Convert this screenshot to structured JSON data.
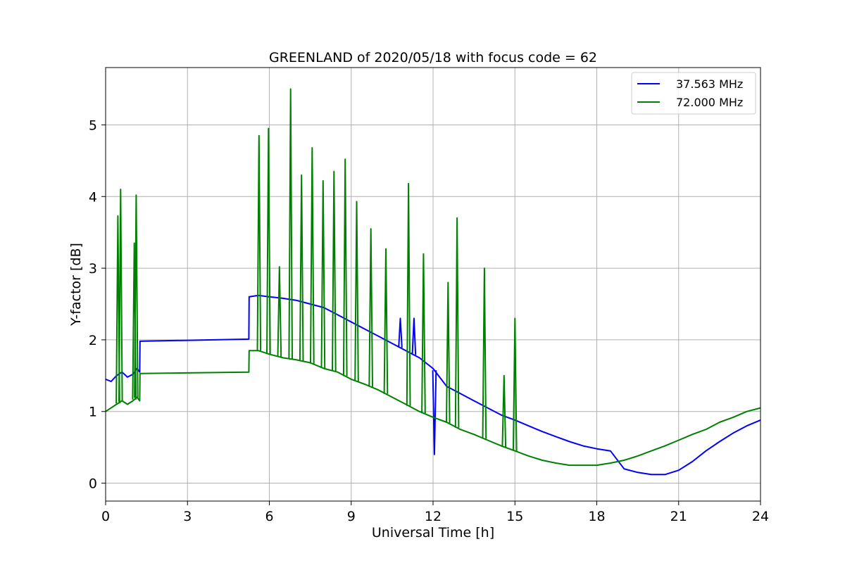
{
  "chart_data": {
    "type": "line",
    "title": "GREENLAND of 2020/05/18 with focus code = 62",
    "xlabel": "Universal Time [h]",
    "ylabel": "Y-factor [dB]",
    "xlim": [
      0,
      24
    ],
    "ylim": [
      -0.25,
      5.8
    ],
    "xticks": [
      0,
      3,
      6,
      9,
      12,
      15,
      18,
      21,
      24
    ],
    "yticks": [
      0,
      1,
      2,
      3,
      4,
      5
    ],
    "grid": true,
    "legend_position": "top-right",
    "series": [
      {
        "name": "37.563 MHz",
        "color": "#0000ff",
        "x": [
          0,
          0.2,
          0.4,
          0.6,
          0.8,
          1.0,
          1.15,
          1.25,
          1.26,
          5.25,
          5.26,
          5.6,
          6.0,
          6.5,
          7.0,
          7.5,
          8.0,
          8.5,
          9.0,
          9.5,
          10.0,
          10.5,
          11.0,
          11.5,
          12.0,
          12.5,
          13.0,
          13.5,
          14.0,
          14.5,
          15.0,
          15.5,
          16.0,
          16.5,
          17.0,
          17.5,
          18.0,
          18.5,
          19.0,
          19.5,
          20.0,
          20.5,
          21.0,
          21.5,
          22.0,
          22.5,
          23.0,
          23.5,
          24.0
        ],
        "y": [
          1.45,
          1.42,
          1.5,
          1.55,
          1.48,
          1.52,
          1.6,
          1.55,
          1.98,
          2.01,
          2.6,
          2.62,
          2.6,
          2.58,
          2.55,
          2.5,
          2.45,
          2.35,
          2.25,
          2.15,
          2.05,
          1.95,
          1.85,
          1.75,
          1.6,
          1.35,
          1.25,
          1.15,
          1.05,
          0.95,
          0.88,
          0.8,
          0.72,
          0.65,
          0.58,
          0.52,
          0.48,
          0.45,
          0.2,
          0.15,
          0.12,
          0.12,
          0.18,
          0.3,
          0.45,
          0.58,
          0.7,
          0.8,
          0.88
        ],
        "spikes": [
          {
            "x": 12.05,
            "y": 0.4
          },
          {
            "x": 11.3,
            "y": 2.3
          },
          {
            "x": 10.8,
            "y": 2.3
          }
        ]
      },
      {
        "name": "72.000 MHz",
        "color": "#008000",
        "x": [
          0,
          0.2,
          0.4,
          0.6,
          0.8,
          1.0,
          1.15,
          1.25,
          1.26,
          5.25,
          5.26,
          5.6,
          6.0,
          6.5,
          7.0,
          7.5,
          8.0,
          8.5,
          9.0,
          9.5,
          10.0,
          10.5,
          11.0,
          11.5,
          12.0,
          12.5,
          13.0,
          13.5,
          14.0,
          14.5,
          15.0,
          15.5,
          16.0,
          16.5,
          17.0,
          17.5,
          18.0,
          18.5,
          19.0,
          19.5,
          20.0,
          20.5,
          21.0,
          21.5,
          22.0,
          22.5,
          23.0,
          23.5,
          24.0
        ],
        "y": [
          1.0,
          1.05,
          1.1,
          1.15,
          1.1,
          1.15,
          1.2,
          1.15,
          1.53,
          1.55,
          1.85,
          1.85,
          1.8,
          1.75,
          1.72,
          1.68,
          1.6,
          1.55,
          1.45,
          1.38,
          1.3,
          1.2,
          1.1,
          1.0,
          0.92,
          0.85,
          0.75,
          0.68,
          0.6,
          0.52,
          0.45,
          0.38,
          0.32,
          0.28,
          0.25,
          0.25,
          0.25,
          0.28,
          0.32,
          0.38,
          0.45,
          0.52,
          0.6,
          0.68,
          0.75,
          0.85,
          0.92,
          1.0,
          1.05
        ],
        "spikes": [
          {
            "x": 0.45,
            "y": 3.73
          },
          {
            "x": 0.55,
            "y": 4.1
          },
          {
            "x": 1.05,
            "y": 3.35
          },
          {
            "x": 1.12,
            "y": 4.02
          },
          {
            "x": 5.62,
            "y": 4.85
          },
          {
            "x": 5.97,
            "y": 4.95
          },
          {
            "x": 6.37,
            "y": 3.02
          },
          {
            "x": 6.78,
            "y": 5.5
          },
          {
            "x": 7.18,
            "y": 4.3
          },
          {
            "x": 7.57,
            "y": 4.68
          },
          {
            "x": 7.97,
            "y": 4.22
          },
          {
            "x": 8.37,
            "y": 4.35
          },
          {
            "x": 8.78,
            "y": 4.52
          },
          {
            "x": 9.2,
            "y": 3.93
          },
          {
            "x": 9.72,
            "y": 3.55
          },
          {
            "x": 10.27,
            "y": 3.27
          },
          {
            "x": 11.1,
            "y": 4.18
          },
          {
            "x": 11.65,
            "y": 3.2
          },
          {
            "x": 12.55,
            "y": 2.8
          },
          {
            "x": 12.88,
            "y": 3.7
          },
          {
            "x": 13.88,
            "y": 3.0
          },
          {
            "x": 14.6,
            "y": 1.5
          },
          {
            "x": 15.0,
            "y": 2.3
          }
        ]
      }
    ]
  }
}
